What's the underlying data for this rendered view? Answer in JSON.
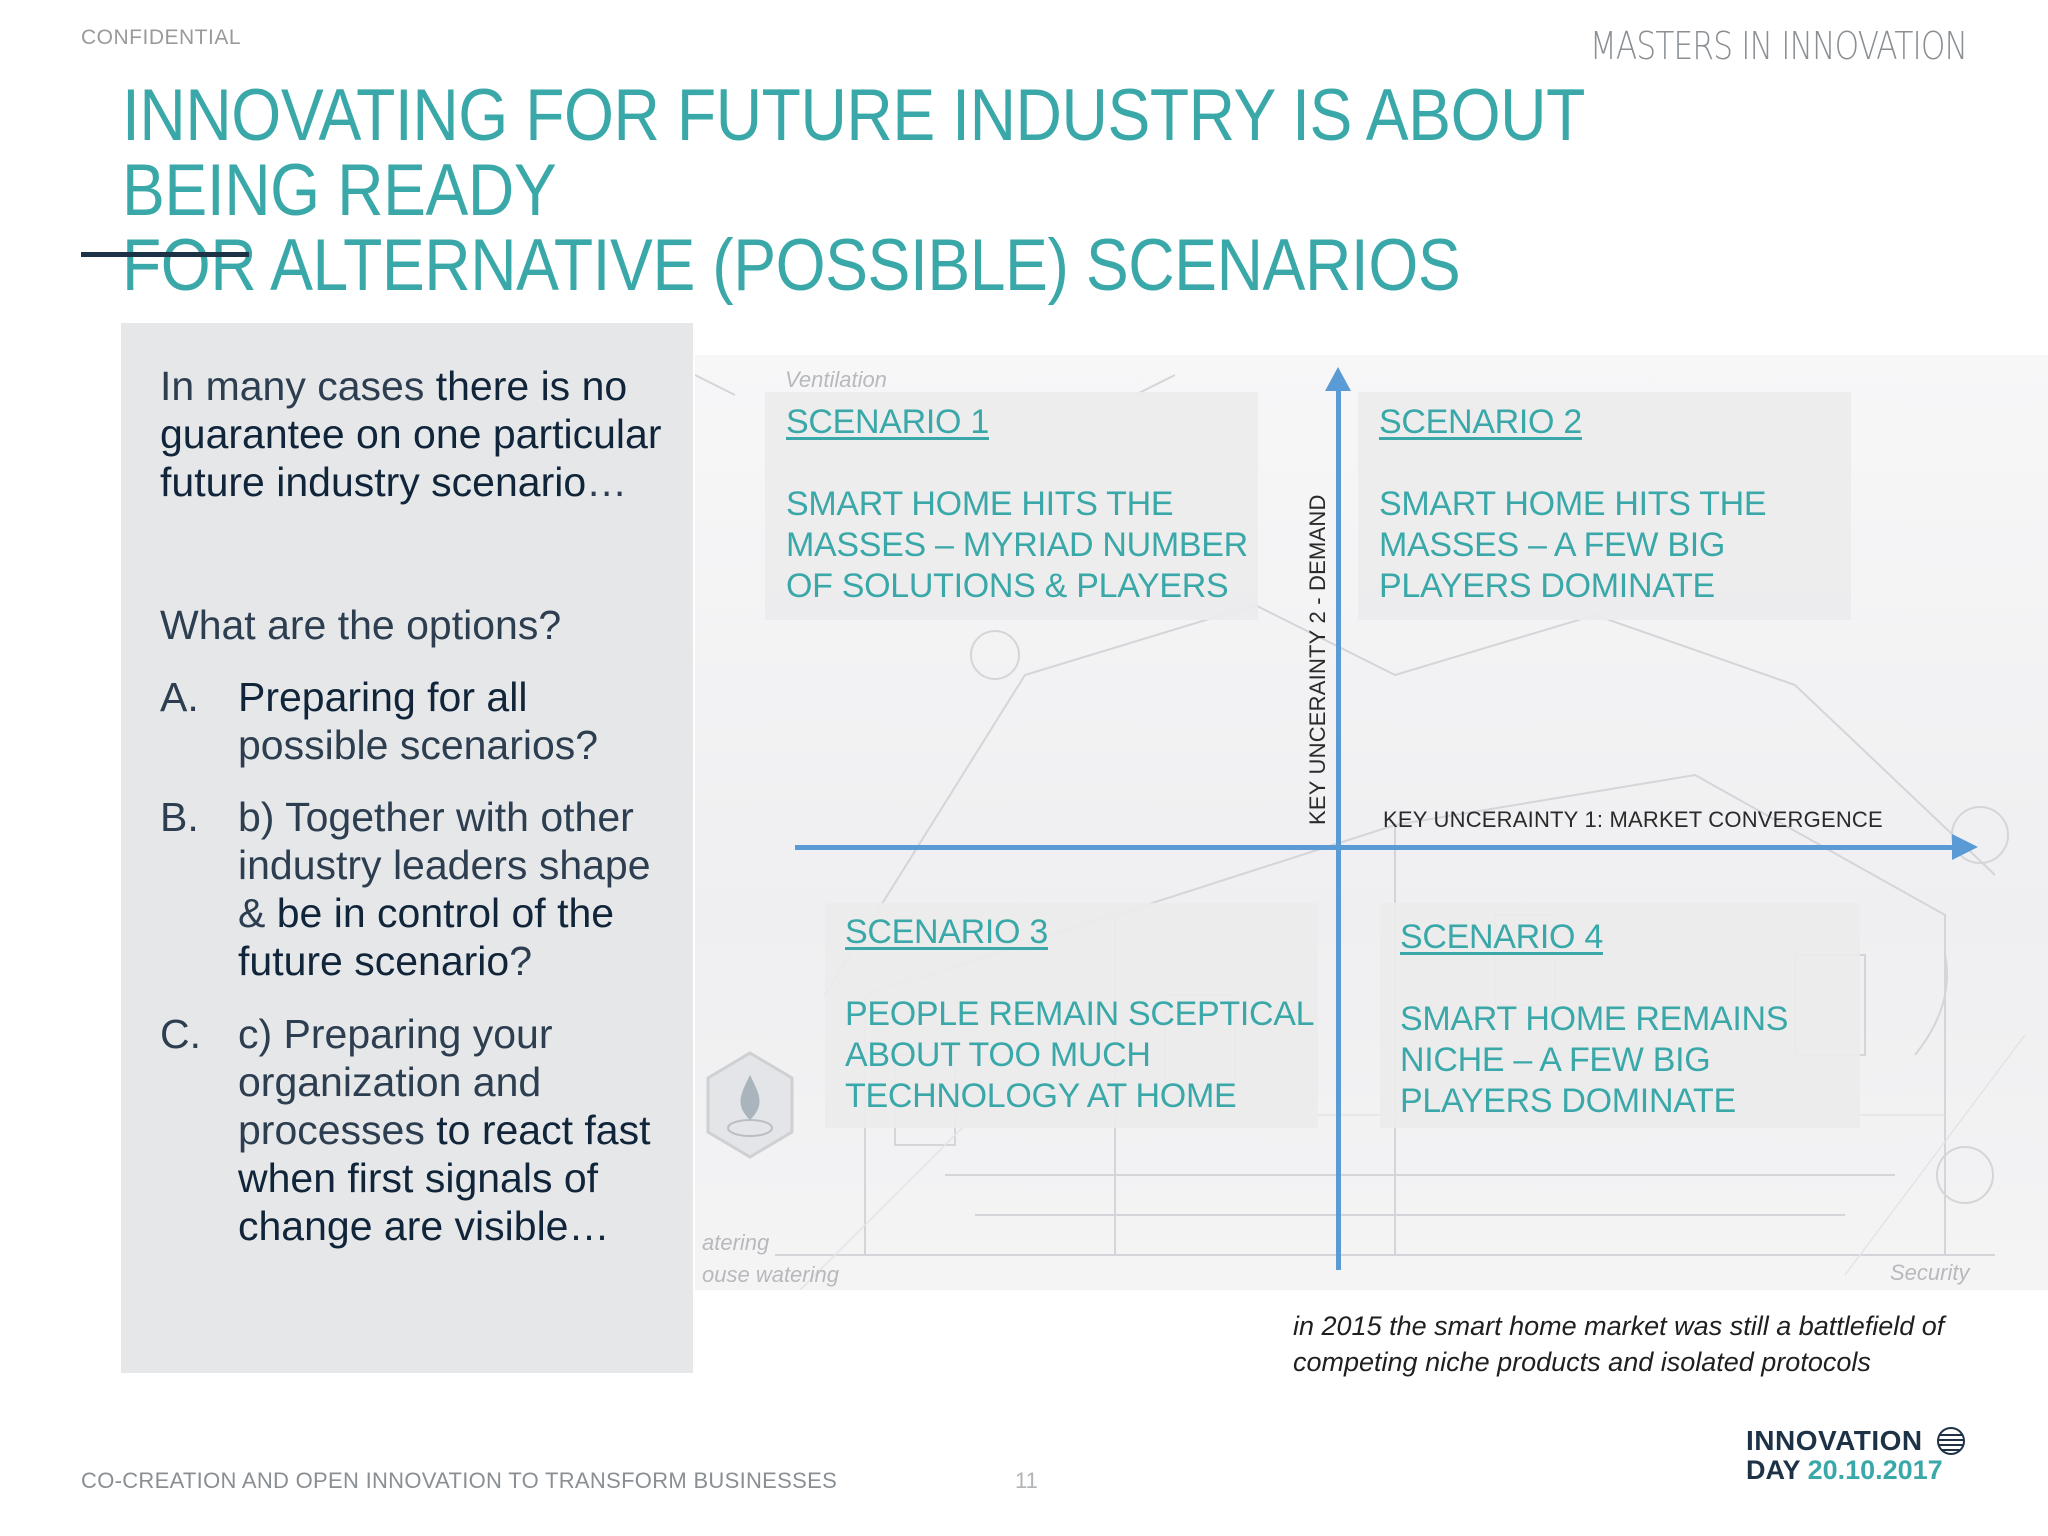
{
  "header": {
    "confidential": "CONFIDENTIAL",
    "brand": "MASTERS IN INNOVATION",
    "title_line1": "INNOVATING FOR FUTURE INDUSTRY IS ABOUT BEING READY",
    "title_line2": "FOR ALTERNATIVE (POSSIBLE) SCENARIOS"
  },
  "left_panel": {
    "intro_part1": "In many cases ",
    "intro_part2": "there is no guarantee on one particular future industry scenario",
    "intro_part3": "…",
    "options_question": "What are the options?",
    "options": [
      {
        "letter": "A.",
        "t1": "Preparing for all",
        "t2": " possible scenarios?"
      },
      {
        "letter": "B.",
        "t1": "b) Together with other industry leaders shape & ",
        "t2": "be in control of the future scenario",
        "t3": "?"
      },
      {
        "letter": "C.",
        "t1": "c) Preparing your organization and processes ",
        "t2": "to react fast when first signals of change are visible…"
      }
    ]
  },
  "diagram": {
    "axis_x_label": "KEY UNCERAINTY 1: MARKET CONVERGENCE",
    "axis_y_label": "KEY UNCERAINTY 2 - DEMAND",
    "bg_labels": [
      "Ventilation",
      "atering",
      "ouse watering",
      "Security"
    ],
    "scenarios": [
      {
        "title": "SCENARIO 1",
        "desc": [
          "SMART HOME HITS THE",
          "MASSES – MYRIAD NUMBER",
          "OF SOLUTIONS & PLAYERS"
        ]
      },
      {
        "title": "SCENARIO 2",
        "desc": [
          "SMART HOME HITS THE",
          "MASSES – A FEW BIG",
          "PLAYERS DOMINATE"
        ]
      },
      {
        "title": "SCENARIO 3",
        "desc": [
          "PEOPLE REMAIN SCEPTICAL",
          "ABOUT TOO MUCH",
          "TECHNOLOGY AT HOME"
        ]
      },
      {
        "title": "SCENARIO 4",
        "desc": [
          "SMART HOME REMAINS",
          "NICHE – A FEW BIG",
          "PLAYERS DOMINATE"
        ]
      }
    ],
    "caption_line1": "in 2015 the smart home market was still a battlefield of",
    "caption_line2": "competing niche products and isolated protocols"
  },
  "footer": {
    "text": "CO-CREATION AND OPEN INNOVATION TO TRANSFORM BUSINESSES",
    "page": "11",
    "logo_line1": "INNOVATION",
    "logo_day": "DAY",
    "logo_date": "20.10.2017"
  },
  "colors": {
    "teal": "#3aa8a8",
    "navy": "#1d3247",
    "axis_blue": "#5b9bd5",
    "panel": "#e6e7e9"
  }
}
